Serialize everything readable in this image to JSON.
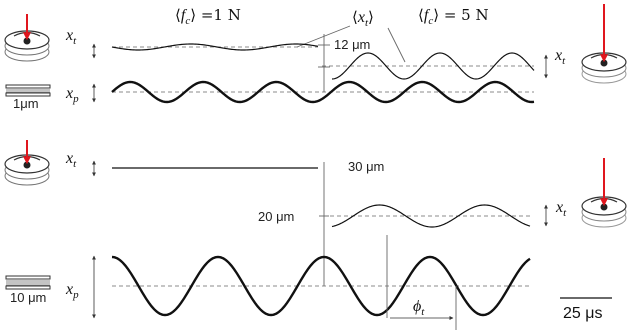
{
  "top_panel": {
    "label_fc_low": "⟨f_c⟩ = 1 N",
    "label_fc_high": "⟨f_c⟩ = 5 N",
    "label_xt_mean": "⟨x_t⟩",
    "scale_label": "12 μm",
    "plate_scale_label": "1μm",
    "xt_symbol": "x_t",
    "xp_symbol": "x_p"
  },
  "bottom_panel": {
    "scale_top_label": "30 μm",
    "scale_mid_label": "20 μm",
    "plate_scale_label": "10 μm",
    "xt_symbol": "x_t",
    "xp_symbol": "x_p",
    "phase_label": "ϕ_t"
  },
  "time_scale_label": "25 μs",
  "colors": {
    "force_arrow": "#e0161e",
    "trace": "#111111",
    "baseline": "#666666"
  },
  "icons": [
    "tool-on-plate-icon",
    "stacked-plates-icon",
    "force-arrow-icon"
  ]
}
